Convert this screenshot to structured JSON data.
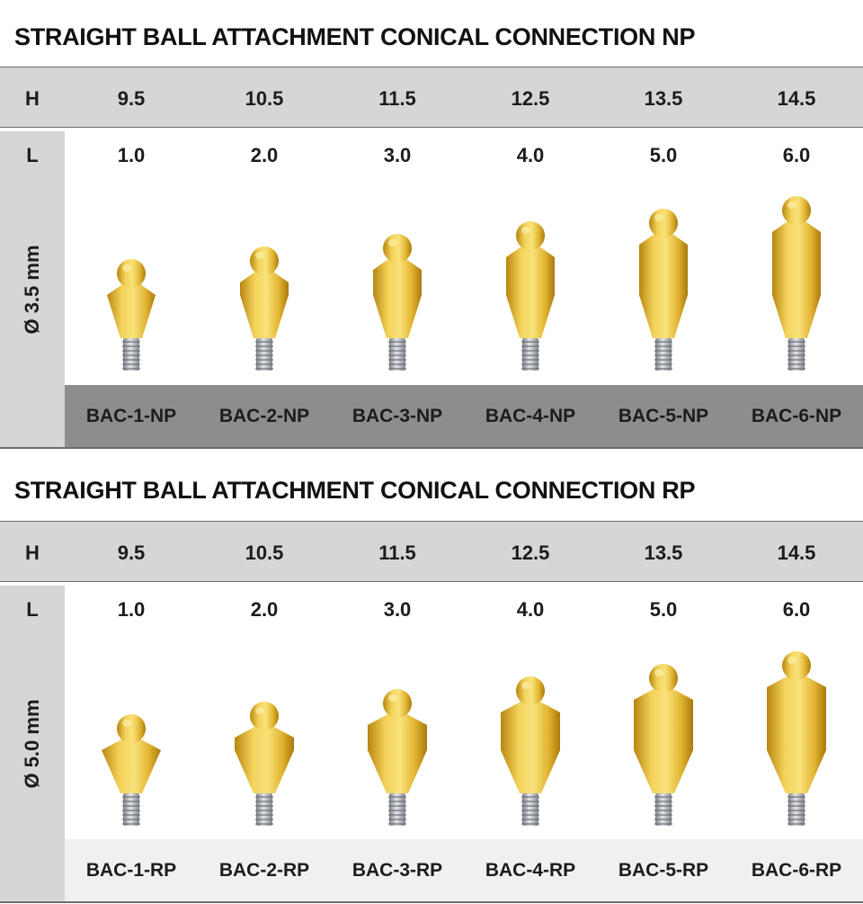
{
  "sections": [
    {
      "title": "STRAIGHT BALL ATTACHMENT CONICAL CONNECTION NP",
      "h_label": "H",
      "heights": [
        "9.5",
        "10.5",
        "11.5",
        "12.5",
        "13.5",
        "14.5"
      ],
      "l_label": "L",
      "lengths": [
        "1.0",
        "2.0",
        "3.0",
        "4.0",
        "5.0",
        "6.0"
      ],
      "diameter": "Ø 3.5 mm",
      "codes": [
        "BAC-1-NP",
        "BAC-2-NP",
        "BAC-3-NP",
        "BAC-4-NP",
        "BAC-5-NP",
        "BAC-6-NP"
      ]
    },
    {
      "title": "STRAIGHT BALL ATTACHMENT CONICAL CONNECTION RP",
      "h_label": "H",
      "heights": [
        "9.5",
        "10.5",
        "11.5",
        "12.5",
        "13.5",
        "14.5"
      ],
      "l_label": "L",
      "lengths": [
        "1.0",
        "2.0",
        "3.0",
        "4.0",
        "5.0",
        "6.0"
      ],
      "diameter": "Ø 5.0 mm",
      "codes": [
        "BAC-1-RP",
        "BAC-2-RP",
        "BAC-3-RP",
        "BAC-4-RP",
        "BAC-5-RP",
        "BAC-6-RP"
      ]
    }
  ],
  "colors": {
    "header_gray": "#d6d6d6",
    "code_bar_np": "#8c8d8f",
    "code_bar_rp": "#f0f0f0",
    "gold": "#e8bf3a",
    "thread_silver": "#b8bcc2"
  }
}
